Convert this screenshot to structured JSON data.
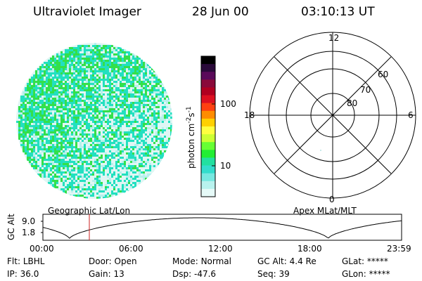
{
  "header": {
    "instrument": "Ultraviolet Imager",
    "date": "28 Jun 00",
    "time": "03:10:13 UT"
  },
  "colorbar": {
    "unit_base": "photon cm",
    "unit_exp1": "-2",
    "unit_mid": "s",
    "unit_exp2": "-1",
    "scale": "log",
    "ticks": [
      "100",
      "10"
    ],
    "colors": [
      "#000000",
      "#2a0a3a",
      "#5a0a5a",
      "#8a0a3a",
      "#b00020",
      "#dd1020",
      "#ff4010",
      "#ff8c00",
      "#ffd000",
      "#ffff40",
      "#ccff33",
      "#66ff33",
      "#22ee33",
      "#22e0a0",
      "#33ddcc",
      "#77e8e0",
      "#b8f2ee",
      "#e6faf8"
    ]
  },
  "image_panel": {
    "colors": {
      "background": "#e0f6f4",
      "green": "#33e04a",
      "cyan": "#22e0c0",
      "light": "#b7f0ec"
    }
  },
  "polar_grid": {
    "lat_labels": [
      "60",
      "70",
      "80"
    ],
    "mlt_labels": {
      "top": "12",
      "left": "18",
      "right": "6",
      "bottom": "0"
    }
  },
  "projection": {
    "left": "Geographic Lat/Lon",
    "right": "Apex MLat/MLT"
  },
  "altitude_plot": {
    "ylabel": "GC Alt",
    "yticks": [
      "9.0",
      "1.8"
    ],
    "xticks": [
      "00:00",
      "06:00",
      "12:00",
      "18:00",
      "23:59"
    ],
    "marker_time": "03:10",
    "marker_color": "#cc2222"
  },
  "status": {
    "flt_label": "Flt:",
    "flt_value": "LBHL",
    "door_label": "Door:",
    "door_value": "Open",
    "mode_label": "Mode:",
    "mode_value": "Normal",
    "gcalt_label": "GC Alt:",
    "gcalt_value": "4.4 Re",
    "glat_label": "GLat:",
    "glat_value": "*****",
    "ip_label": "IP:",
    "ip_value": "36.0",
    "gain_label": "Gain:",
    "gain_value": "13",
    "dsp_label": "Dsp:",
    "dsp_value": "-47.6",
    "seq_label": "Seq:",
    "seq_value": "39",
    "glon_label": "GLon:",
    "glon_value": "*****"
  }
}
